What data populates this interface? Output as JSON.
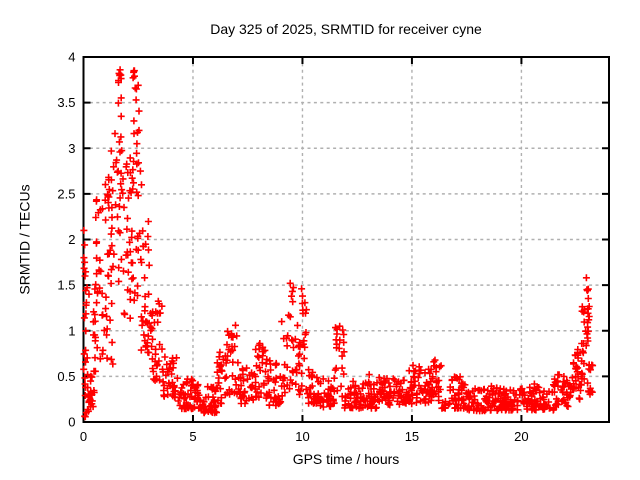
{
  "page": {
    "background": "#ffffff"
  },
  "chart_data": {
    "type": "scatter",
    "title": "Day 325 of 2025, SRMTID for receiver cyne",
    "xlabel": "GPS time / hours",
    "ylabel": "SRMTID / TECUs",
    "xlim": [
      0,
      24
    ],
    "ylim": [
      0,
      4
    ],
    "xtick_values": [
      0,
      5,
      10,
      15,
      20
    ],
    "xtick_labels": [
      "0",
      "5",
      "10",
      "15",
      "20"
    ],
    "ytick_values": [
      0,
      0.5,
      1,
      1.5,
      2,
      2.5,
      3,
      3.5,
      4
    ],
    "ytick_labels": [
      "0",
      "0.5",
      "1",
      "1.5",
      "2",
      "2.5",
      "3",
      "3.5",
      "4"
    ],
    "grid": true,
    "legend": "none",
    "marker": {
      "shape": "plus",
      "color": "#ff0000",
      "size": 7
    },
    "colors": {
      "marker": "#ff0000",
      "grid": "#b0b0b0",
      "border": "#000000",
      "background": "#ffffff",
      "text": "#000000"
    },
    "notable_points": [
      [
        0.02,
        2.1
      ],
      [
        0.05,
        1.75
      ],
      [
        0.07,
        1.6
      ],
      [
        0.1,
        1.44
      ],
      [
        0.12,
        1.28
      ],
      [
        1.62,
        3.82
      ],
      [
        1.67,
        3.86
      ],
      [
        1.6,
        3.72
      ],
      [
        1.72,
        3.35
      ],
      [
        2.3,
        3.85
      ],
      [
        2.33,
        3.79
      ],
      [
        2.36,
        3.66
      ],
      [
        2.4,
        3.53
      ],
      [
        2.3,
        3.3
      ],
      [
        2.44,
        3.05
      ],
      [
        2.6,
        2.75
      ],
      [
        2.65,
        2.6
      ],
      [
        6.94,
        1.06
      ],
      [
        8.05,
        0.86
      ],
      [
        9.05,
        1.1
      ],
      [
        9.44,
        1.52
      ],
      [
        9.96,
        1.46
      ],
      [
        10.0,
        1.38
      ],
      [
        11.7,
        1.05
      ],
      [
        13.05,
        0.52
      ],
      [
        15.05,
        0.62
      ],
      [
        16.0,
        0.66
      ],
      [
        22.97,
        1.58
      ],
      [
        22.99,
        1.45
      ],
      [
        23.02,
        1.44
      ]
    ],
    "density_segments": [
      [
        0.0,
        0.12,
        12,
        0.05,
        2.2,
        1.5
      ],
      [
        0.05,
        0.5,
        26,
        0.04,
        0.5,
        1.2
      ],
      [
        0.1,
        0.55,
        14,
        0.5,
        1.6,
        1.0
      ],
      [
        0.5,
        0.95,
        30,
        0.3,
        2.55,
        0.75
      ],
      [
        0.95,
        1.35,
        30,
        0.6,
        2.7,
        0.8
      ],
      [
        1.1,
        1.5,
        14,
        1.5,
        3.2,
        0.9
      ],
      [
        1.5,
        1.85,
        22,
        1.3,
        3.15,
        0.9
      ],
      [
        1.55,
        1.75,
        7,
        3.3,
        3.87,
        1.0
      ],
      [
        1.85,
        2.25,
        24,
        1.1,
        2.9,
        1.0
      ],
      [
        2.25,
        2.55,
        9,
        3.15,
        3.86,
        1.0
      ],
      [
        2.2,
        2.62,
        24,
        1.3,
        3.0,
        1.4
      ],
      [
        2.62,
        3.1,
        34,
        0.75,
        2.2,
        1.5
      ],
      [
        3.1,
        3.6,
        30,
        0.45,
        1.35,
        1.5
      ],
      [
        3.6,
        4.3,
        36,
        0.27,
        0.75,
        1.4
      ],
      [
        4.3,
        5.15,
        48,
        0.14,
        0.48,
        1.4
      ],
      [
        5.15,
        6.1,
        52,
        0.1,
        0.42,
        1.4
      ],
      [
        6.1,
        6.55,
        24,
        0.2,
        0.8,
        1.2
      ],
      [
        6.55,
        7.15,
        30,
        0.3,
        1.0,
        1.1
      ],
      [
        7.15,
        7.8,
        30,
        0.2,
        0.6,
        1.3
      ],
      [
        7.8,
        8.35,
        28,
        0.25,
        0.88,
        1.4
      ],
      [
        8.35,
        9.05,
        34,
        0.18,
        0.7,
        1.5
      ],
      [
        9.05,
        9.35,
        14,
        0.25,
        0.95,
        1.1
      ],
      [
        9.35,
        9.6,
        14,
        0.35,
        1.5,
        1.0
      ],
      [
        9.6,
        9.9,
        16,
        0.3,
        1.1,
        1.1
      ],
      [
        9.9,
        10.2,
        16,
        0.3,
        1.45,
        1.0
      ],
      [
        10.2,
        10.65,
        24,
        0.2,
        0.6,
        1.4
      ],
      [
        10.65,
        11.5,
        40,
        0.16,
        0.5,
        1.5
      ],
      [
        11.5,
        11.9,
        20,
        0.28,
        1.05,
        1.0
      ],
      [
        11.9,
        12.5,
        32,
        0.15,
        0.45,
        1.4
      ],
      [
        12.5,
        13.5,
        52,
        0.15,
        0.45,
        1.5
      ],
      [
        13.5,
        14.5,
        52,
        0.18,
        0.52,
        1.5
      ],
      [
        14.5,
        15.5,
        50,
        0.2,
        0.62,
        1.5
      ],
      [
        15.5,
        16.35,
        44,
        0.2,
        0.68,
        1.5
      ],
      [
        16.35,
        17.5,
        56,
        0.15,
        0.5,
        1.6
      ],
      [
        17.5,
        19.0,
        74,
        0.12,
        0.4,
        1.6
      ],
      [
        19.0,
        20.5,
        72,
        0.13,
        0.38,
        1.6
      ],
      [
        20.5,
        21.5,
        50,
        0.13,
        0.42,
        1.6
      ],
      [
        21.5,
        22.35,
        44,
        0.17,
        0.52,
        1.3
      ],
      [
        22.35,
        22.75,
        28,
        0.25,
        0.9,
        1.1
      ],
      [
        22.75,
        23.1,
        28,
        0.35,
        1.35,
        1.0
      ],
      [
        23.0,
        23.12,
        6,
        0.95,
        1.5,
        1.0
      ],
      [
        23.05,
        23.25,
        10,
        0.3,
        0.65,
        1.2
      ]
    ]
  }
}
